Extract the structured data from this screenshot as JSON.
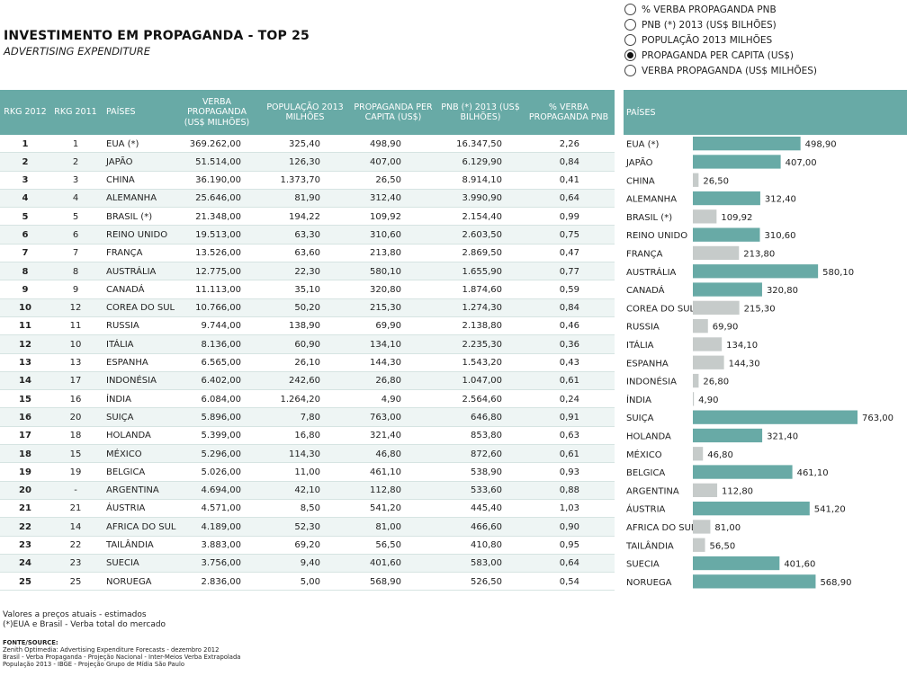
{
  "title": "INVESTIMENTO EM PROPAGANDA - TOP 25",
  "subtitle": "ADVERTISING EXPENDITURE",
  "radio_options": [
    {
      "label": "% VERBA PROPAGANDA PNB",
      "selected": false
    },
    {
      "label": "PNB (*) 2013 (US$ BILHÕES)",
      "selected": false
    },
    {
      "label": "POPULAÇÃO 2013 MILHÕES",
      "selected": false
    },
    {
      "label": "PROPAGANDA PER CAPITA (US$)",
      "selected": true
    },
    {
      "label": "VERBA PROPAGANDA (US$ MILHÕES)",
      "selected": false
    }
  ],
  "table": {
    "headers": {
      "rkg2012": "RKG 2012",
      "rkg2011": "RKG 2011",
      "paises": "PAÍSES",
      "verba": "VERBA PROPAGANDA (US$ MILHÕES)",
      "populacao": "POPULAÇÃO 2013 MILHÕES",
      "per_capita": "PROPAGANDA PER CAPITA (US$)",
      "pnb": "PNB (*) 2013 (US$ BILHÕES)",
      "pct": "% VERBA PROPAGANDA PNB"
    },
    "rows": [
      {
        "rkg2012": "1",
        "rkg2011": "1",
        "pais": "EUA (*)",
        "verba": "369.262,00",
        "pop": "325,40",
        "ppc": "498,90",
        "pnb": "16.347,50",
        "pct": "2,26"
      },
      {
        "rkg2012": "2",
        "rkg2011": "2",
        "pais": "JAPÃO",
        "verba": "51.514,00",
        "pop": "126,30",
        "ppc": "407,00",
        "pnb": "6.129,90",
        "pct": "0,84"
      },
      {
        "rkg2012": "3",
        "rkg2011": "3",
        "pais": "CHINA",
        "verba": "36.190,00",
        "pop": "1.373,70",
        "ppc": "26,50",
        "pnb": "8.914,10",
        "pct": "0,41"
      },
      {
        "rkg2012": "4",
        "rkg2011": "4",
        "pais": "ALEMANHA",
        "verba": "25.646,00",
        "pop": "81,90",
        "ppc": "312,40",
        "pnb": "3.990,90",
        "pct": "0,64"
      },
      {
        "rkg2012": "5",
        "rkg2011": "5",
        "pais": "BRASIL (*)",
        "verba": "21.348,00",
        "pop": "194,22",
        "ppc": "109,92",
        "pnb": "2.154,40",
        "pct": "0,99"
      },
      {
        "rkg2012": "6",
        "rkg2011": "6",
        "pais": "REINO UNIDO",
        "verba": "19.513,00",
        "pop": "63,30",
        "ppc": "310,60",
        "pnb": "2.603,50",
        "pct": "0,75"
      },
      {
        "rkg2012": "7",
        "rkg2011": "7",
        "pais": "FRANÇA",
        "verba": "13.526,00",
        "pop": "63,60",
        "ppc": "213,80",
        "pnb": "2.869,50",
        "pct": "0,47"
      },
      {
        "rkg2012": "8",
        "rkg2011": "8",
        "pais": "AUSTRÁLIA",
        "verba": "12.775,00",
        "pop": "22,30",
        "ppc": "580,10",
        "pnb": "1.655,90",
        "pct": "0,77"
      },
      {
        "rkg2012": "9",
        "rkg2011": "9",
        "pais": "CANADÁ",
        "verba": "11.113,00",
        "pop": "35,10",
        "ppc": "320,80",
        "pnb": "1.874,60",
        "pct": "0,59"
      },
      {
        "rkg2012": "10",
        "rkg2011": "12",
        "pais": "COREA DO SUL",
        "verba": "10.766,00",
        "pop": "50,20",
        "ppc": "215,30",
        "pnb": "1.274,30",
        "pct": "0,84"
      },
      {
        "rkg2012": "11",
        "rkg2011": "11",
        "pais": "RUSSIA",
        "verba": "9.744,00",
        "pop": "138,90",
        "ppc": "69,90",
        "pnb": "2.138,80",
        "pct": "0,46"
      },
      {
        "rkg2012": "12",
        "rkg2011": "10",
        "pais": "ITÁLIA",
        "verba": "8.136,00",
        "pop": "60,90",
        "ppc": "134,10",
        "pnb": "2.235,30",
        "pct": "0,36"
      },
      {
        "rkg2012": "13",
        "rkg2011": "13",
        "pais": "ESPANHA",
        "verba": "6.565,00",
        "pop": "26,10",
        "ppc": "144,30",
        "pnb": "1.543,20",
        "pct": "0,43"
      },
      {
        "rkg2012": "14",
        "rkg2011": "17",
        "pais": "INDONÉSIA",
        "verba": "6.402,00",
        "pop": "242,60",
        "ppc": "26,80",
        "pnb": "1.047,00",
        "pct": "0,61"
      },
      {
        "rkg2012": "15",
        "rkg2011": "16",
        "pais": "ÍNDIA",
        "verba": "6.084,00",
        "pop": "1.264,20",
        "ppc": "4,90",
        "pnb": "2.564,60",
        "pct": "0,24"
      },
      {
        "rkg2012": "16",
        "rkg2011": "20",
        "pais": "SUIÇA",
        "verba": "5.896,00",
        "pop": "7,80",
        "ppc": "763,00",
        "pnb": "646,80",
        "pct": "0,91"
      },
      {
        "rkg2012": "17",
        "rkg2011": "18",
        "pais": "HOLANDA",
        "verba": "5.399,00",
        "pop": "16,80",
        "ppc": "321,40",
        "pnb": "853,80",
        "pct": "0,63"
      },
      {
        "rkg2012": "18",
        "rkg2011": "15",
        "pais": "MÉXICO",
        "verba": "5.296,00",
        "pop": "114,30",
        "ppc": "46,80",
        "pnb": "872,60",
        "pct": "0,61"
      },
      {
        "rkg2012": "19",
        "rkg2011": "19",
        "pais": "BELGICA",
        "verba": "5.026,00",
        "pop": "11,00",
        "ppc": "461,10",
        "pnb": "538,90",
        "pct": "0,93"
      },
      {
        "rkg2012": "20",
        "rkg2011": "-",
        "pais": "ARGENTINA",
        "verba": "4.694,00",
        "pop": "42,10",
        "ppc": "112,80",
        "pnb": "533,60",
        "pct": "0,88"
      },
      {
        "rkg2012": "21",
        "rkg2011": "21",
        "pais": "ÁUSTRIA",
        "verba": "4.571,00",
        "pop": "8,50",
        "ppc": "541,20",
        "pnb": "445,40",
        "pct": "1,03"
      },
      {
        "rkg2012": "22",
        "rkg2011": "14",
        "pais": "AFRICA DO SUL",
        "verba": "4.189,00",
        "pop": "52,30",
        "ppc": "81,00",
        "pnb": "466,60",
        "pct": "0,90"
      },
      {
        "rkg2012": "23",
        "rkg2011": "22",
        "pais": "TAILÂNDIA",
        "verba": "3.883,00",
        "pop": "69,20",
        "ppc": "56,50",
        "pnb": "410,80",
        "pct": "0,95"
      },
      {
        "rkg2012": "24",
        "rkg2011": "23",
        "pais": "SUECIA",
        "verba": "3.756,00",
        "pop": "9,40",
        "ppc": "401,60",
        "pnb": "583,00",
        "pct": "0,64"
      },
      {
        "rkg2012": "25",
        "rkg2011": "25",
        "pais": "NORUEGA",
        "verba": "2.836,00",
        "pop": "5,00",
        "ppc": "568,90",
        "pnb": "526,50",
        "pct": "0,54"
      }
    ]
  },
  "chart_data": {
    "type": "bar",
    "orientation": "horizontal",
    "header_label": "PAÍSES",
    "categories": [
      "EUA (*)",
      "JAPÃO",
      "CHINA",
      "ALEMANHA",
      "BRASIL (*)",
      "REINO UNIDO",
      "FRANÇA",
      "AUSTRÁLIA",
      "CANADÁ",
      "COREA DO SUL",
      "RUSSIA",
      "ITÁLIA",
      "ESPANHA",
      "INDONÉSIA",
      "ÍNDIA",
      "SUIÇA",
      "HOLANDA",
      "MÉXICO",
      "BELGICA",
      "ARGENTINA",
      "ÁUSTRIA",
      "AFRICA DO SUL",
      "TAILÂNDIA",
      "SUECIA",
      "NORUEGA"
    ],
    "values": [
      498.9,
      407.0,
      26.5,
      312.4,
      109.92,
      310.6,
      213.8,
      580.1,
      320.8,
      215.3,
      69.9,
      134.1,
      144.3,
      26.8,
      4.9,
      763.0,
      321.4,
      46.8,
      461.1,
      112.8,
      541.2,
      81.0,
      56.5,
      401.6,
      568.9
    ],
    "value_labels": [
      "498,90",
      "407,00",
      "26,50",
      "312,40",
      "109,92",
      "310,60",
      "213,80",
      "580,10",
      "320,80",
      "215,30",
      "69,90",
      "134,10",
      "144,30",
      "26,80",
      "4,90",
      "763,00",
      "321,40",
      "46,80",
      "461,10",
      "112,80",
      "541,20",
      "81,00",
      "56,50",
      "401,60",
      "568,90"
    ],
    "threshold": 300,
    "colors": {
      "high": "#68aaa6",
      "low": "#c6cbca",
      "header": "#68aaa6"
    }
  },
  "footnotes": {
    "line1": "Valores a preços atuais - estimados",
    "line2": "(*)EUA e Brasil - Verba total do mercado"
  },
  "source": {
    "title": "FONTE/SOURCE:",
    "line1": "Zenith Optimedia: Advertising Expenditure Forecasts - dezembro 2012",
    "line2": "Brasil - Verba Propaganda - Projeção Nacional - Inter-Meios Verba Extrapolada",
    "line3": "População 2013 - IBGE - Projeção Grupo de Mídia São Paulo"
  }
}
